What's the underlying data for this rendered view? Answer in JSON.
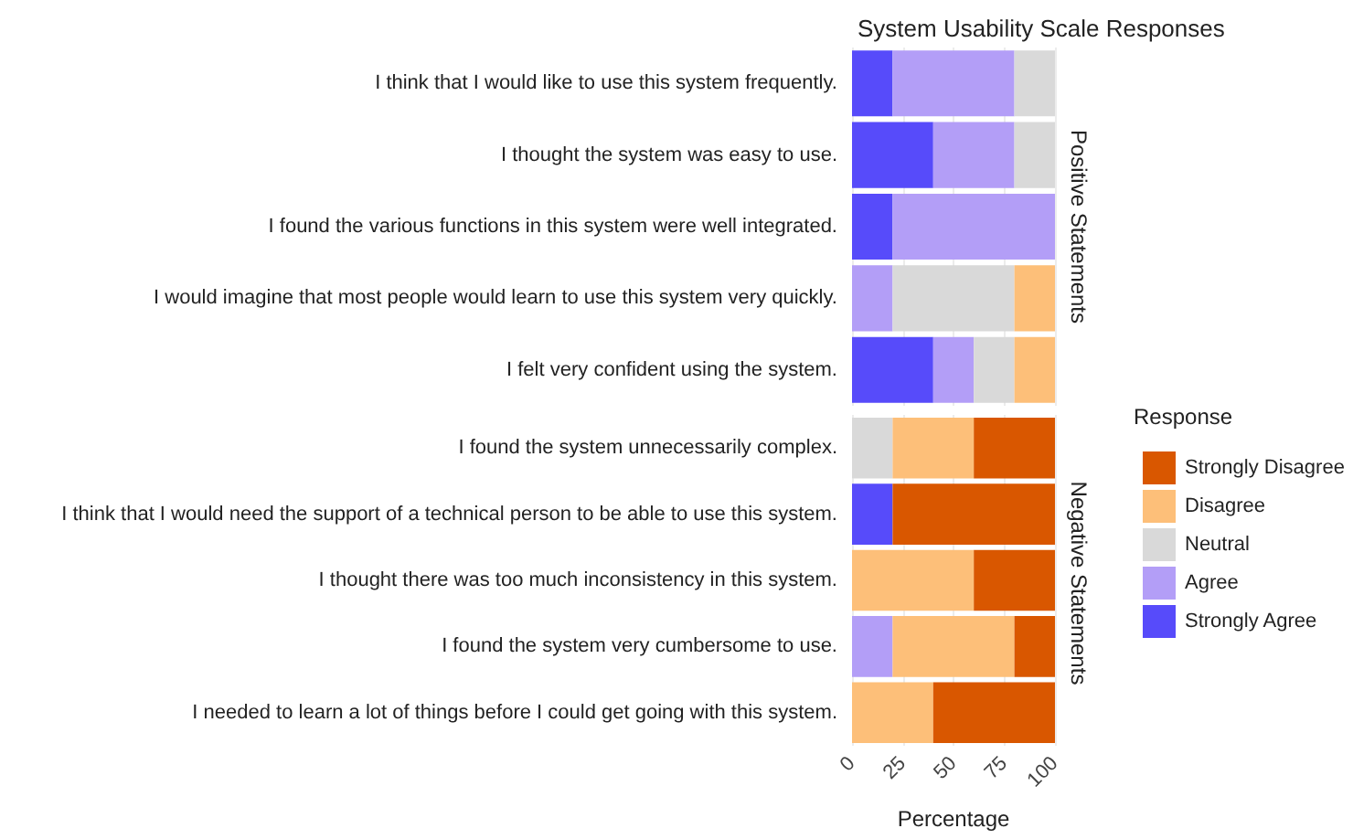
{
  "chart_data": [
    {
      "type": "bar",
      "orientation": "horizontal",
      "stacked": true,
      "title": "System Usability Scale Responses",
      "subtitle": "Positive Statements",
      "categories": [
        "I think that I would like to use this system frequently.",
        "I thought the system was easy to use.",
        "I found the various functions in this system were well integrated.",
        "I would imagine that most people would learn to use this system very quickly.",
        "I felt very confident using the system."
      ],
      "series": [
        {
          "name": "Strongly Agree",
          "color": "#574bfa",
          "values": [
            20,
            40,
            20,
            0,
            40
          ]
        },
        {
          "name": "Agree",
          "color": "#b39ef7",
          "values": [
            60,
            40,
            80,
            20,
            20
          ]
        },
        {
          "name": "Neutral",
          "color": "#d9d9d9",
          "values": [
            20,
            20,
            0,
            60,
            20
          ]
        },
        {
          "name": "Disagree",
          "color": "#fdbf79",
          "values": [
            0,
            0,
            0,
            20,
            20
          ]
        },
        {
          "name": "Strongly Disagree",
          "color": "#d95700",
          "values": [
            0,
            0,
            0,
            0,
            0
          ]
        }
      ],
      "xlim": [
        0,
        100
      ],
      "xticks": [
        0,
        25,
        50,
        75,
        100
      ],
      "tick_labels": "y",
      "grid": "x",
      "legend": "right",
      "legend_title": "Response"
    },
    {
      "type": "bar",
      "orientation": "horizontal",
      "stacked": true,
      "subtitle": "Negative Statements",
      "xlabel": "Percentage",
      "categories": [
        "I found the system unnecessarily complex.",
        "I think that I would need the support of a technical person to be able to use this system.",
        "I thought there was too much inconsistency in this system.",
        "I found the system very cumbersome to use.",
        "I needed to learn a lot of things before I could get going with this system."
      ],
      "series": [
        {
          "color": "#574bfa",
          "values": [
            0,
            20,
            0,
            0,
            0
          ]
        },
        {
          "color": "#b39ef7",
          "values": [
            0,
            0,
            0,
            20,
            0
          ]
        },
        {
          "color": "#d9d9d9",
          "values": [
            20,
            0,
            0,
            0,
            0
          ]
        },
        {
          "color": "#fdbf79",
          "values": [
            40,
            0,
            60,
            60,
            40
          ]
        },
        {
          "color": "#d95700",
          "values": [
            40,
            80,
            40,
            20,
            60
          ]
        }
      ],
      "xlim": [
        0,
        100
      ],
      "xticks": [
        0,
        25,
        50,
        75,
        100
      ],
      "grid": "x"
    }
  ]
}
